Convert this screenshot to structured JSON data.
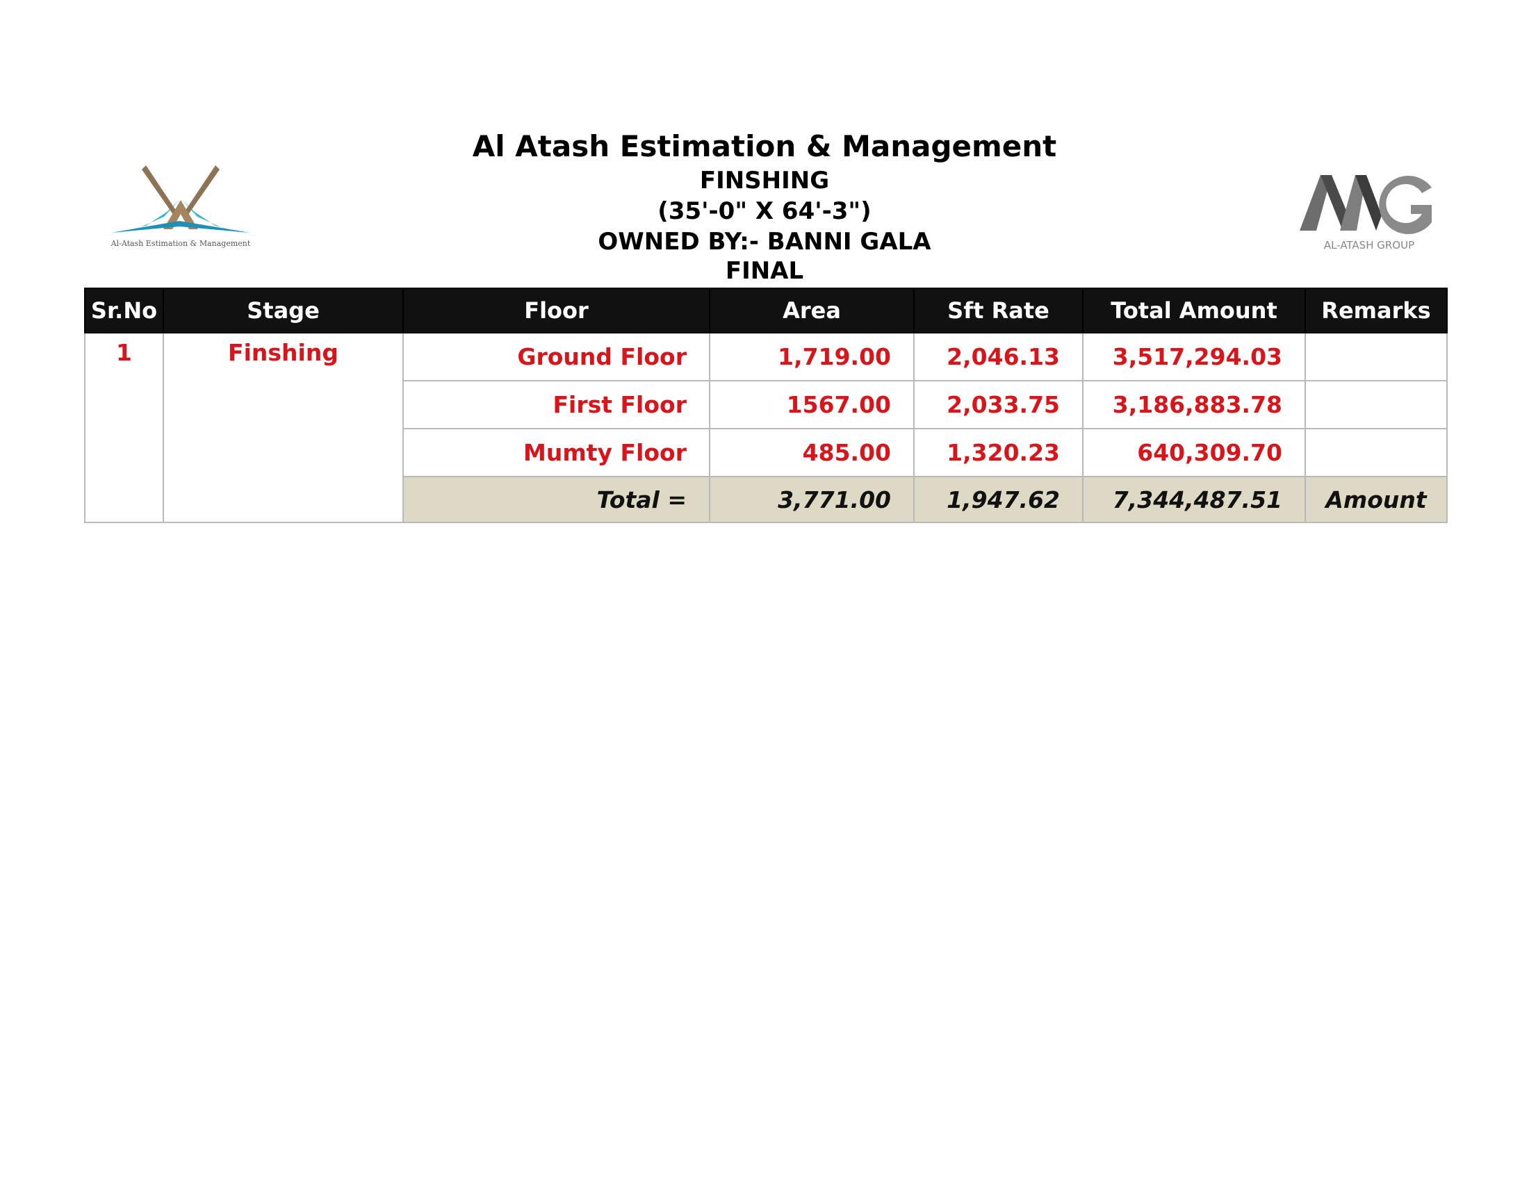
{
  "document": {
    "company": "Al Atash Estimation & Management",
    "section": "FINSHING",
    "dimensions": "(35'-0\" X 64'-3\")",
    "owner": "OWNED BY:- BANNI GALA",
    "status": "FINAL"
  },
  "logos": {
    "left_caption": "Al-Atash Estimation & Management",
    "right_mark": "AAG",
    "right_caption": "AL-ATASH GROUP"
  },
  "table": {
    "headers": {
      "sr_no": "Sr.No",
      "stage": "Stage",
      "floor": "Floor",
      "area": "Area",
      "sft_rate": "Sft Rate",
      "total_amount": "Total Amount",
      "remarks": "Remarks"
    },
    "sr_no": "1",
    "stage": "Finshing",
    "rows": [
      {
        "floor": "Ground Floor",
        "area": "1,719.00",
        "sft_rate": "2,046.13",
        "total_amount": "3,517,294.03",
        "remarks": ""
      },
      {
        "floor": "First Floor",
        "area": "1567.00",
        "sft_rate": "2,033.75",
        "total_amount": "3,186,883.78",
        "remarks": ""
      },
      {
        "floor": "Mumty Floor",
        "area": "485.00",
        "sft_rate": "1,320.23",
        "total_amount": "640,309.70",
        "remarks": ""
      }
    ],
    "total": {
      "label": "Total =",
      "area": "3,771.00",
      "sft_rate": "1,947.62",
      "total_amount": "7,344,487.51",
      "remarks": "Amount"
    }
  },
  "colors": {
    "header_bg": "#111111",
    "value_text": "#d7151b",
    "total_row_bg": "#ddd9c4"
  }
}
